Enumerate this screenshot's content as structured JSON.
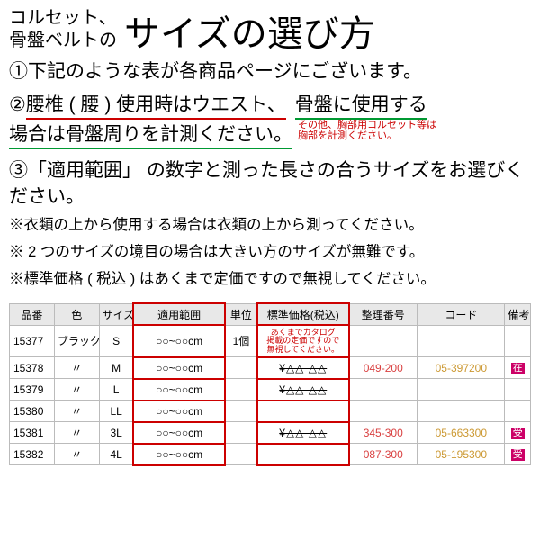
{
  "title_small": "コルセット、\n骨盤ベルトの",
  "title_large": "サイズの選び方",
  "step1": "①下記のような表が各商品ページにございます。",
  "step2": {
    "prefix": "②",
    "red_part": "腰椎 ( 腰 ) 使用時はウエスト、",
    "green_part_a": "骨盤に使用する",
    "green_part_b": "場合は骨盤周りを計測ください。",
    "tiny_red_l1": "その他、胸部用コルセット等は",
    "tiny_red_l2": "胸部を計測ください。"
  },
  "step3": "③「適用範囲」 の数字と測った長さの合うサイズをお選びください。",
  "note1": "※衣類の上から使用する場合は衣類の上から測ってください。",
  "note2": "※ 2 つのサイズの境目の場合は大きい方のサイズが無難です。",
  "note3": "※標準価格 ( 税込 ) はあくまで定価ですので無視してください。",
  "table": {
    "headers": {
      "hinban": "品番",
      "iro": "色",
      "size": "サイズ",
      "tekiyou": "適用範囲",
      "tanni": "単位",
      "kakaku": "標準価格(税込)",
      "seiri": "整理番号",
      "code": "コード",
      "bikou": "備考"
    },
    "price_note_l1": "あくまでカタログ",
    "price_note_l2": "掲載の定価ですので",
    "price_note_l3": "無視してください。",
    "rows": [
      {
        "hinban": "15377",
        "iro": "ブラック",
        "size": "S",
        "tekiyou": "○○~○○cm",
        "tanni": "1個",
        "kakaku": "",
        "seiri": "",
        "code": "",
        "bikou": ""
      },
      {
        "hinban": "15378",
        "iro": "〃",
        "size": "M",
        "tekiyou": "○○~○○cm",
        "tanni": "",
        "kakaku": "¥△△ △△",
        "seiri": "049-200",
        "code": "05-397200",
        "bikou": "在"
      },
      {
        "hinban": "15379",
        "iro": "〃",
        "size": "L",
        "tekiyou": "○○~○○cm",
        "tanni": "",
        "kakaku": "¥△△ △△",
        "seiri": "",
        "code": "",
        "bikou": ""
      },
      {
        "hinban": "15380",
        "iro": "〃",
        "size": "LL",
        "tekiyou": "○○~○○cm",
        "tanni": "",
        "kakaku": "",
        "seiri": "",
        "code": "",
        "bikou": ""
      },
      {
        "hinban": "15381",
        "iro": "〃",
        "size": "3L",
        "tekiyou": "○○~○○cm",
        "tanni": "",
        "kakaku": "¥△△ △△",
        "seiri": "345-300",
        "code": "05-663300",
        "bikou": "受"
      },
      {
        "hinban": "15382",
        "iro": "〃",
        "size": "4L",
        "tekiyou": "○○~○○cm",
        "tanni": "",
        "kakaku": "",
        "seiri": "087-300",
        "code": "05-195300",
        "bikou": "受"
      }
    ]
  }
}
